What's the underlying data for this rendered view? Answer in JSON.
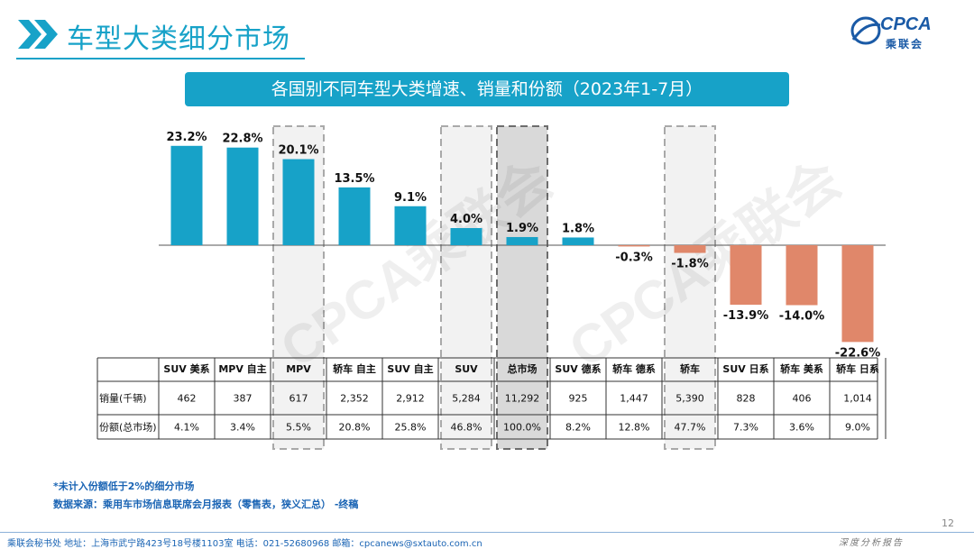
{
  "header": {
    "title": "车型大类细分市场"
  },
  "logo": {
    "main": "CPCA",
    "sub": "乘联会"
  },
  "banner": {
    "text": "各国别不同车型大类增速、销量和份额（2023年1-7月）"
  },
  "colors": {
    "accent": "#17a2c8",
    "positive": "#17a2c8",
    "negative": "#e0876a",
    "highlight": "#cfcfcf"
  },
  "chart_data": {
    "type": "bar",
    "categories": [
      "SUV 美系",
      "MPV 自主",
      "MPV",
      "轿车 自主",
      "SUV 自主",
      "SUV",
      "总市场",
      "SUV 德系",
      "轿车 德系",
      "轿车",
      "SUV 日系",
      "轿车 美系",
      "轿车 日系"
    ],
    "values": [
      23.2,
      22.8,
      20.1,
      13.5,
      9.1,
      4.0,
      1.9,
      1.8,
      -0.3,
      -1.8,
      -13.9,
      -14.0,
      -22.6
    ],
    "value_labels": [
      "23.2%",
      "22.8%",
      "20.1%",
      "13.5%",
      "9.1%",
      "4.0%",
      "1.9%",
      "1.8%",
      "-0.3%",
      "-1.8%",
      "-13.9%",
      "-14.0%",
      "-22.6%"
    ],
    "highlighted": [
      "MPV",
      "SUV",
      "总市场",
      "轿车"
    ],
    "table": {
      "rows": [
        {
          "label": "销量(千辆)",
          "values": [
            "462",
            "387",
            "617",
            "2,352",
            "2,912",
            "5,284",
            "11,292",
            "925",
            "1,447",
            "5,390",
            "828",
            "406",
            "1,014"
          ]
        },
        {
          "label": "份额(总市场)",
          "values": [
            "4.1%",
            "3.4%",
            "5.5%",
            "20.8%",
            "25.8%",
            "46.8%",
            "100.0%",
            "8.2%",
            "12.8%",
            "47.7%",
            "7.3%",
            "3.6%",
            "9.0%"
          ]
        }
      ]
    }
  },
  "watermark": "CPCA乘联会",
  "footnotes": {
    "note": "*未计入份额低于2%的细分市场",
    "source": "数据来源：乘用车市场信息联席会月报表（零售表，狭义汇总） -终稿"
  },
  "footer": {
    "text": "乘联会秘书处   地址：上海市武宁路423号18号楼1103室  电话：021-52680968   邮箱：cpcanews@sxtauto.com.cn",
    "page": "12",
    "right": "深度分析报告"
  }
}
